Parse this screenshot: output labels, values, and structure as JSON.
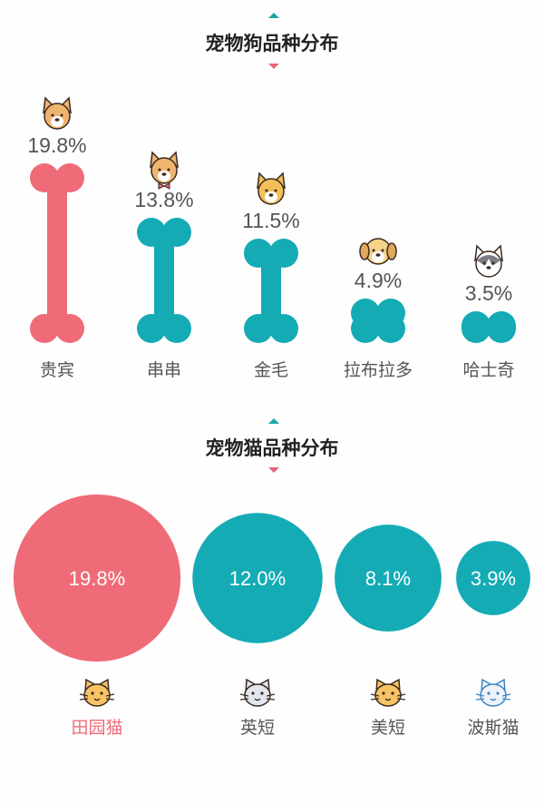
{
  "colors": {
    "highlight": "#ef6b78",
    "default": "#14abb5",
    "text": "#555555"
  },
  "chart_data": [
    {
      "type": "bar",
      "title": "宠物狗品种分布",
      "categories": [
        "贵宾",
        "串串",
        "金毛",
        "拉布拉多",
        "哈士奇"
      ],
      "values": [
        19.8,
        13.8,
        11.5,
        4.9,
        3.5
      ],
      "value_labels": [
        "19.8%",
        "13.8%",
        "11.5%",
        "4.9%",
        "3.5%"
      ],
      "icons": [
        "corgi-icon",
        "corgi-bowtie-icon",
        "shiba-icon",
        "labrador-icon",
        "husky-icon"
      ],
      "mark": "bone",
      "highlight_index": 0
    },
    {
      "type": "bubble",
      "title": "宠物猫品种分布",
      "categories": [
        "田园猫",
        "英短",
        "美短",
        "波斯猫"
      ],
      "values": [
        19.8,
        12.0,
        8.1,
        3.9
      ],
      "value_labels": [
        "19.8%",
        "12.0%",
        "8.1%",
        "3.9%"
      ],
      "icons": [
        "orange-cat-icon",
        "grey-cat-icon",
        "yellow-cat-icon",
        "blue-cat-icon"
      ],
      "highlight_index": 0
    }
  ]
}
